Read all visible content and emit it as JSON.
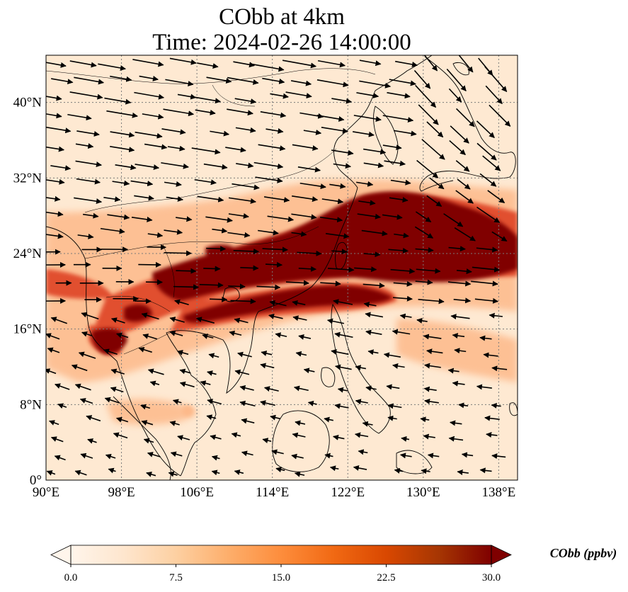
{
  "title": {
    "line1": "CObb at 4km",
    "line2": "Time: 2024-02-26 14:00:00"
  },
  "map": {
    "lon_range": [
      90,
      140
    ],
    "lat_range": [
      0,
      45
    ],
    "lon_ticks": [
      {
        "value": 90,
        "label": "90°E"
      },
      {
        "value": 98,
        "label": "98°E"
      },
      {
        "value": 106,
        "label": "106°E"
      },
      {
        "value": 114,
        "label": "114°E"
      },
      {
        "value": 122,
        "label": "122°E"
      },
      {
        "value": 130,
        "label": "130°E"
      },
      {
        "value": 138,
        "label": "138°E"
      }
    ],
    "lat_ticks": [
      {
        "value": 0,
        "label": "0°"
      },
      {
        "value": 8,
        "label": "8°N"
      },
      {
        "value": 16,
        "label": "16°N"
      },
      {
        "value": 24,
        "label": "24°N"
      },
      {
        "value": 32,
        "label": "32°N"
      },
      {
        "value": 40,
        "label": "40°N"
      }
    ],
    "gridlines": true
  },
  "colorbar": {
    "label": "CObb (ppbv)",
    "min": 0,
    "max": 30,
    "ticks": [
      {
        "value": 0,
        "label": "0.0"
      },
      {
        "value": 7.5,
        "label": "7.5"
      },
      {
        "value": 15,
        "label": "15.0"
      },
      {
        "value": 22.5,
        "label": "22.5"
      },
      {
        "value": 30,
        "label": "30.0"
      }
    ],
    "extend": "both",
    "colors": [
      "#fff5eb",
      "#fee6ce",
      "#fdd0a2",
      "#fdae6b",
      "#fd8d3c",
      "#f16913",
      "#d94801",
      "#a63603",
      "#7f0000"
    ]
  },
  "colors": {
    "background_field": "#fee9d2",
    "plume_low": "#fdb98a",
    "plume_mid": "#e0492b",
    "plume_high": "#800000",
    "coast": "#000000",
    "grid": "#7a7a7a"
  }
}
